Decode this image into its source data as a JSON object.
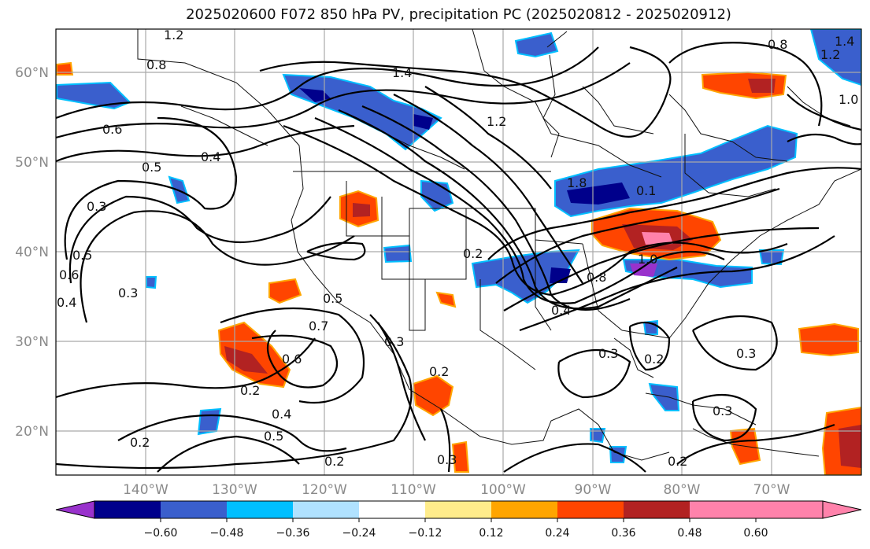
{
  "title": "2025020600 F072 850 hPa PV, precipitation PC (2025020812 - 2025020912)",
  "map": {
    "lat_ticks": [
      "60°N",
      "50°N",
      "40°N",
      "30°N",
      "20°N"
    ],
    "lon_ticks": [
      "140°W",
      "130°W",
      "120°W",
      "110°W",
      "100°W",
      "90°W",
      "80°W",
      "70°W"
    ],
    "contour_labels": [
      "1.2",
      "0.8",
      "1.4",
      "1.2",
      "0.6",
      "0.4",
      "0.5",
      "0.3",
      "0.5",
      "0.6",
      "0.4",
      "0.3",
      "0.2",
      "0.7",
      "0.6",
      "0.5",
      "0.3",
      "0.2",
      "0.4",
      "0.5",
      "0.2",
      "0.2",
      "0.3",
      "0.2",
      "0.8",
      "1.0",
      "0.3",
      "0.2",
      "0.3",
      "0.3",
      "0.2",
      "1.4",
      "1.2",
      "0.8",
      "1.0",
      "1.8",
      "0.1",
      "0.4"
    ]
  },
  "colorbar": {
    "tick_labels": [
      "−0.60",
      "−0.48",
      "−0.36",
      "−0.24",
      "−0.12",
      "0.12",
      "0.24",
      "0.36",
      "0.48",
      "0.60"
    ],
    "colors": [
      "#9932cc",
      "#00008b",
      "#3a5fcd",
      "#00bfff",
      "#b0e2ff",
      "#ffffff",
      "#ffec8b",
      "#ffa500",
      "#ff4500",
      "#b22222",
      "#ff82ab",
      "#ff82ab"
    ]
  }
}
